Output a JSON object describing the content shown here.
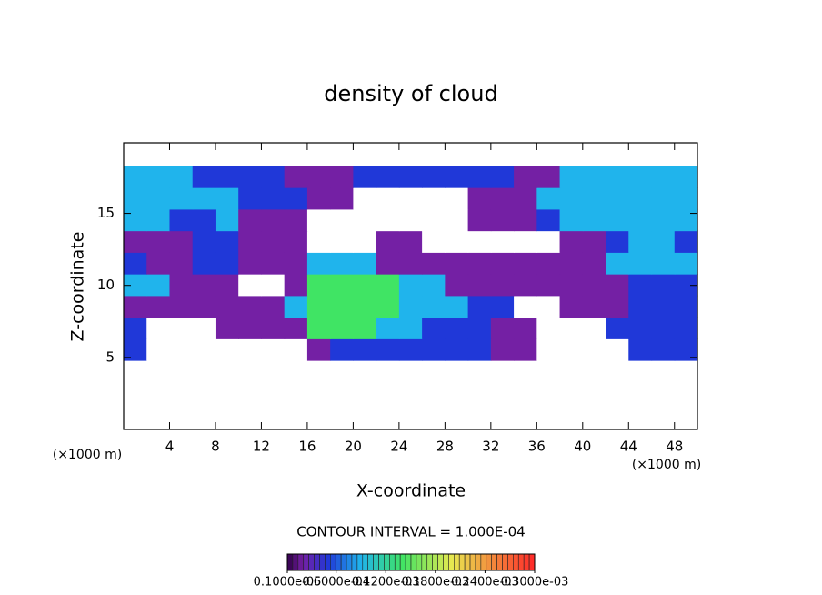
{
  "chart_data": {
    "type": "heatmap",
    "title": "density of cloud",
    "x_label": "X-coordinate",
    "y_label": "Z-coordinate",
    "x_unit": "(×1000 m)",
    "y_unit": "(×1000 m)",
    "annotation": "CONTOUR INTERVAL = 1.000E-04",
    "xlim": [
      0,
      50
    ],
    "ylim": [
      0,
      19.9
    ],
    "xticks": [
      4,
      8,
      12,
      16,
      20,
      24,
      28,
      32,
      36,
      40,
      44,
      48
    ],
    "yticks": [
      5,
      10,
      15
    ],
    "x_edges": [
      0,
      2,
      4,
      6,
      8,
      10,
      12,
      14,
      16,
      18,
      20,
      22,
      24,
      26,
      28,
      30,
      32,
      34,
      36,
      38,
      40,
      42,
      44,
      46,
      48,
      50
    ],
    "y_edges": [
      4.8,
      6.3,
      7.8,
      9.3,
      10.8,
      12.3,
      13.8,
      15.3,
      16.8,
      18.3
    ],
    "values": [
      [
        5e-05,
        0,
        0,
        0,
        0,
        0,
        0,
        0,
        2e-05,
        5e-05,
        5e-05,
        5e-05,
        5e-05,
        5e-05,
        5e-05,
        5e-05,
        2e-05,
        2e-05,
        0,
        0,
        0,
        0,
        5e-05,
        5e-05,
        5e-05
      ],
      [
        5e-05,
        0,
        0,
        0,
        2e-05,
        2e-05,
        2e-05,
        2e-05,
        0.00014,
        0.00014,
        0.00014,
        9e-05,
        9e-05,
        5e-05,
        5e-05,
        5e-05,
        2e-05,
        2e-05,
        0,
        0,
        0,
        5e-05,
        5e-05,
        5e-05,
        5e-05
      ],
      [
        2e-05,
        2e-05,
        2e-05,
        2e-05,
        2e-05,
        2e-05,
        2e-05,
        9e-05,
        0.00014,
        0.00014,
        0.00014,
        0.00014,
        9e-05,
        9e-05,
        9e-05,
        5e-05,
        5e-05,
        0,
        0,
        2e-05,
        2e-05,
        2e-05,
        5e-05,
        5e-05,
        5e-05
      ],
      [
        9e-05,
        9e-05,
        2e-05,
        2e-05,
        2e-05,
        0,
        0,
        2e-05,
        0.00014,
        0.00014,
        0.00014,
        0.00014,
        9e-05,
        9e-05,
        2e-05,
        2e-05,
        2e-05,
        2e-05,
        2e-05,
        2e-05,
        2e-05,
        2e-05,
        5e-05,
        5e-05,
        5e-05
      ],
      [
        5e-05,
        2e-05,
        2e-05,
        5e-05,
        5e-05,
        2e-05,
        2e-05,
        2e-05,
        9e-05,
        9e-05,
        9e-05,
        2e-05,
        2e-05,
        2e-05,
        2e-05,
        2e-05,
        2e-05,
        2e-05,
        2e-05,
        2e-05,
        2e-05,
        9e-05,
        9e-05,
        9e-05,
        9e-05
      ],
      [
        2e-05,
        2e-05,
        2e-05,
        5e-05,
        5e-05,
        2e-05,
        2e-05,
        2e-05,
        0,
        0,
        0,
        2e-05,
        2e-05,
        0,
        0,
        0,
        0,
        0,
        0,
        2e-05,
        2e-05,
        5e-05,
        9e-05,
        9e-05,
        5e-05
      ],
      [
        9e-05,
        9e-05,
        5e-05,
        5e-05,
        9e-05,
        2e-05,
        2e-05,
        2e-05,
        0,
        0,
        0,
        0,
        0,
        0,
        0,
        2e-05,
        2e-05,
        2e-05,
        5e-05,
        9e-05,
        9e-05,
        9e-05,
        9e-05,
        9e-05,
        9e-05
      ],
      [
        9e-05,
        9e-05,
        9e-05,
        9e-05,
        9e-05,
        5e-05,
        5e-05,
        5e-05,
        2e-05,
        2e-05,
        0,
        0,
        0,
        0,
        0,
        2e-05,
        2e-05,
        2e-05,
        9e-05,
        9e-05,
        9e-05,
        9e-05,
        9e-05,
        9e-05,
        9e-05
      ],
      [
        9e-05,
        9e-05,
        9e-05,
        5e-05,
        5e-05,
        5e-05,
        5e-05,
        2e-05,
        2e-05,
        2e-05,
        5e-05,
        5e-05,
        5e-05,
        5e-05,
        5e-05,
        5e-05,
        5e-05,
        2e-05,
        2e-05,
        9e-05,
        9e-05,
        9e-05,
        9e-05,
        9e-05,
        9e-05
      ]
    ],
    "colorscale": [
      [
        0,
        "#ffffff"
      ],
      [
        1e-06,
        "#300048"
      ],
      [
        2e-05,
        "#7420a4"
      ],
      [
        5e-05,
        "#2038d8"
      ],
      [
        9e-05,
        "#20b4ec"
      ],
      [
        0.00014,
        "#40e464"
      ],
      [
        0.0002,
        "#e8e850"
      ],
      [
        0.0003,
        "#ff2828"
      ]
    ],
    "colorbar_ticks": [
      {
        "value": 1e-06,
        "label": "0.1000e-05"
      },
      {
        "value": 6e-05,
        "label": "0.6000e-04"
      },
      {
        "value": 0.00012,
        "label": "0.1200e-03"
      },
      {
        "value": 0.00018,
        "label": "0.1800e-03"
      },
      {
        "value": 0.00024,
        "label": "0.2400e-03"
      },
      {
        "value": 0.0003,
        "label": "0.3000e-03"
      }
    ]
  }
}
